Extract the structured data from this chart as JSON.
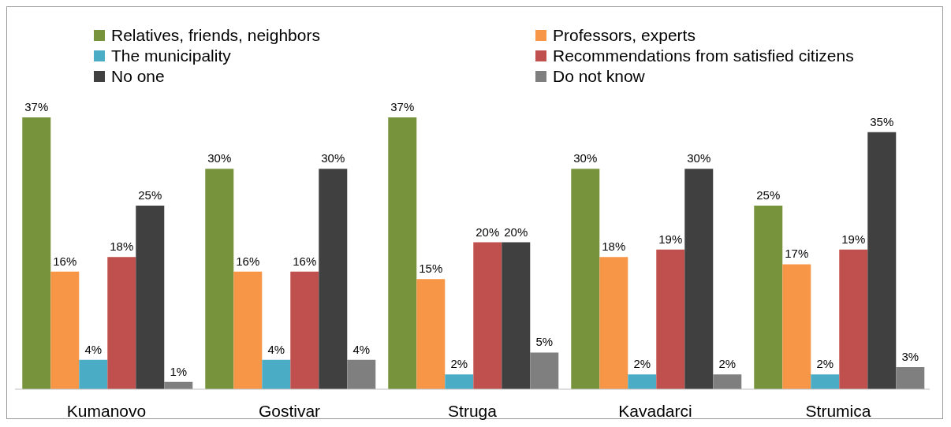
{
  "chart_data": {
    "type": "bar",
    "categories": [
      "Kumanovo",
      "Gostivar",
      "Struga",
      "Kavadarci",
      "Strumica"
    ],
    "legend": "top",
    "series": [
      {
        "name": "Relatives, friends, neighbors",
        "color": "#77933c",
        "values": [
          37,
          30,
          37,
          30,
          25
        ],
        "value_labels": [
          "37%",
          "30%",
          "37%",
          "30%",
          "25%"
        ]
      },
      {
        "name": "Professors, experts",
        "color": "#f79646",
        "values": [
          16,
          16,
          15,
          18,
          17
        ],
        "value_labels": [
          "16%",
          "16%",
          "15%",
          "18%",
          "17%"
        ]
      },
      {
        "name": "The municipality",
        "color": "#4bacc6",
        "values": [
          4,
          4,
          2,
          2,
          2
        ],
        "value_labels": [
          "4%",
          "4%",
          "2%",
          "2%",
          "2%"
        ]
      },
      {
        "name": "Recommendations from satisfied citizens",
        "color": "#c0504d",
        "values": [
          18,
          16,
          20,
          19,
          19
        ],
        "value_labels": [
          "18%",
          "16%",
          "20%",
          "19%",
          "19%"
        ]
      },
      {
        "name": "No one",
        "color": "#404040",
        "values": [
          25,
          30,
          20,
          30,
          35
        ],
        "value_labels": [
          "25%",
          "30%",
          "20%",
          "30%",
          "35%"
        ]
      },
      {
        "name": "Do not know",
        "color": "#7f7f7f",
        "values": [
          1,
          4,
          5,
          2,
          3
        ],
        "value_labels": [
          "1%",
          "4%",
          "5%",
          "2%",
          "3%"
        ]
      }
    ]
  }
}
